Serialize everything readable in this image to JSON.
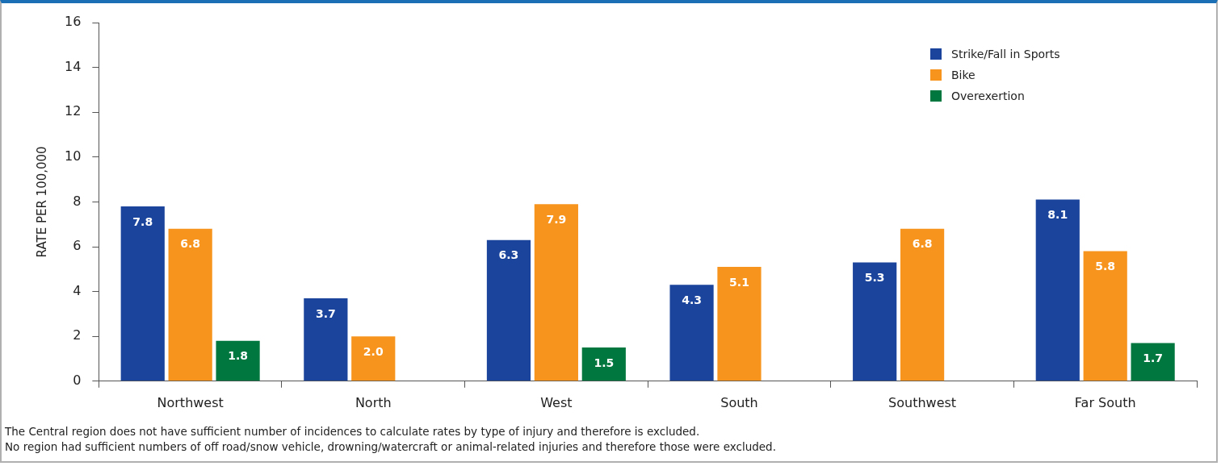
{
  "chart_data": {
    "type": "bar",
    "ylabel": "RATE PER 100,000",
    "categories": [
      "Northwest",
      "North",
      "West",
      "South",
      "Southwest",
      "Far South"
    ],
    "series": [
      {
        "name": "Strike/Fall in Sports",
        "color": "#1b449c",
        "values": [
          7.8,
          3.7,
          6.3,
          4.3,
          5.3,
          8.1
        ],
        "value_labels": [
          "7.8",
          "3.7",
          "6.3",
          "4.3",
          "5.3",
          "8.1"
        ]
      },
      {
        "name": "Bike",
        "color": "#f7941d",
        "values": [
          6.8,
          2.0,
          7.9,
          5.1,
          6.8,
          5.8
        ],
        "value_labels": [
          "6.8",
          "2.0",
          "7.9",
          "5.1",
          "6.8",
          "5.8"
        ]
      },
      {
        "name": "Overexertion",
        "color": "#00773f",
        "values": [
          1.8,
          null,
          1.5,
          null,
          null,
          1.7
        ],
        "value_labels": [
          "1.8",
          null,
          "1.5",
          null,
          null,
          "1.7"
        ]
      }
    ],
    "ylim": [
      0,
      16
    ],
    "yticks": [
      0,
      2,
      4,
      6,
      8,
      10,
      12,
      14,
      16
    ],
    "legend": "top right",
    "annotations": [
      "The Central region does not have sufficient number of incidences to calculate rates by type of injury and therefore is excluded.",
      "No region had sufficient numbers of off road/snow vehicle, drowning/watercraft or animal-related injuries and therefore those were excluded."
    ]
  }
}
